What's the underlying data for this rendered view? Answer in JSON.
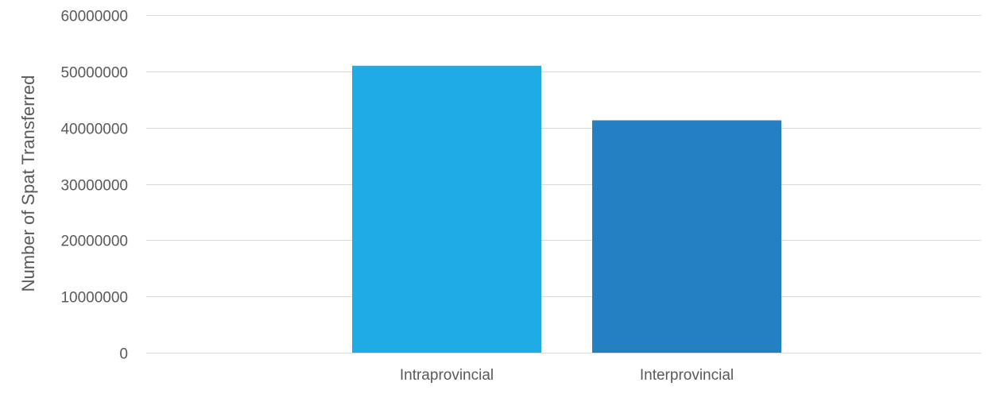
{
  "chart_data": {
    "type": "bar",
    "title": "",
    "xlabel": "",
    "ylabel": "Number of Spat Transferred",
    "categories": [
      "Intraprovincial",
      "Interprovincial"
    ],
    "values": [
      51000000,
      41300000
    ],
    "colors": [
      "#1fabe3",
      "#2580c3"
    ],
    "ylim": [
      0,
      60000000
    ],
    "yticks": [
      0,
      10000000,
      20000000,
      30000000,
      40000000,
      50000000,
      60000000
    ],
    "ytick_labels": [
      "0",
      "10000000",
      "20000000",
      "30000000",
      "40000000",
      "50000000",
      "60000000"
    ],
    "grid": true,
    "legend": "none"
  }
}
